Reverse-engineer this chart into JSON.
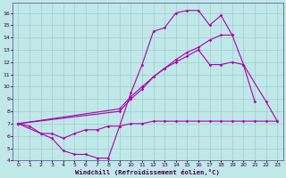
{
  "xlabel": "Windchill (Refroidissement éolien,°C)",
  "bg_color": "#c0e8e8",
  "line_color": "#aa00aa",
  "grid_color": "#a0cccc",
  "xlim": [
    -0.5,
    23.5
  ],
  "ylim": [
    4,
    16.8
  ],
  "yticks": [
    4,
    5,
    6,
    7,
    8,
    9,
    10,
    11,
    12,
    13,
    14,
    15,
    16
  ],
  "xticks": [
    0,
    1,
    2,
    3,
    4,
    5,
    6,
    7,
    8,
    9,
    10,
    11,
    12,
    13,
    14,
    15,
    16,
    17,
    18,
    19,
    20,
    21,
    22,
    23
  ],
  "line1_x": [
    0,
    1,
    2,
    3,
    4,
    5,
    6,
    7,
    8,
    9,
    10,
    11,
    12,
    13,
    14,
    15,
    16,
    17,
    18,
    19,
    20,
    21
  ],
  "line1_y": [
    7.0,
    6.8,
    6.2,
    5.8,
    4.8,
    4.5,
    4.5,
    4.2,
    4.2,
    6.8,
    9.5,
    11.8,
    14.5,
    14.8,
    16.0,
    16.2,
    16.2,
    15.0,
    15.8,
    14.2,
    11.8,
    8.8
  ],
  "line2_x": [
    0,
    9,
    10,
    11,
    12,
    13,
    14,
    15,
    16,
    17,
    18,
    19
  ],
  "line2_y": [
    7.0,
    8.0,
    9.0,
    9.8,
    10.8,
    11.5,
    12.2,
    12.8,
    13.2,
    13.8,
    14.2,
    14.2
  ],
  "line3_x": [
    0,
    9,
    10,
    11,
    12,
    13,
    14,
    15,
    16,
    17,
    18,
    19,
    20,
    22,
    23
  ],
  "line3_y": [
    7.0,
    8.2,
    9.2,
    10.0,
    10.8,
    11.5,
    12.0,
    12.5,
    13.0,
    11.8,
    11.8,
    12.0,
    11.8,
    8.8,
    7.2
  ],
  "line4_x": [
    0,
    2,
    3,
    4,
    5,
    6,
    7,
    8,
    9,
    10,
    11,
    12,
    13,
    14,
    15,
    16,
    17,
    18,
    19,
    20,
    21,
    22,
    23
  ],
  "line4_y": [
    7.0,
    6.2,
    6.2,
    5.8,
    6.2,
    6.5,
    6.5,
    6.8,
    6.8,
    7.0,
    7.0,
    7.2,
    7.2,
    7.2,
    7.2,
    7.2,
    7.2,
    7.2,
    7.2,
    7.2,
    7.2,
    7.2,
    7.2
  ]
}
